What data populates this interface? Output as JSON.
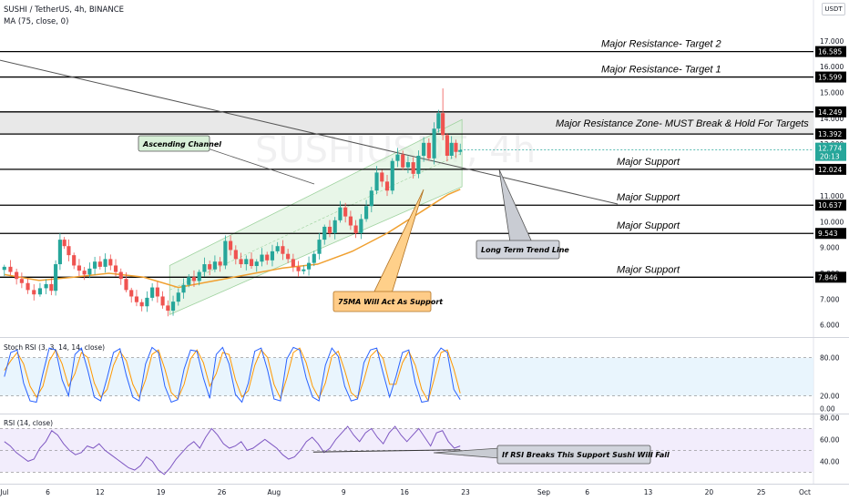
{
  "header": {
    "title": "SUSHI / TetherUS, 4h, BINANCE",
    "indicator": "MA (75, close, 0)",
    "currency": "USDT"
  },
  "chart_data": {
    "type": "candlestick",
    "title": "SUSHI / TetherUS, 4h, BINANCE",
    "price_ticks": [
      6.0,
      7.0,
      8.0,
      9.0,
      10.0,
      11.0,
      12.0,
      13.0,
      14.0,
      15.0,
      16.0,
      17.0
    ],
    "price_ylim": [
      5.6,
      18.3
    ],
    "date_axis": {
      "labels": [
        {
          "day": 0,
          "text": "Jul"
        },
        {
          "day": 5,
          "text": "6"
        },
        {
          "day": 11,
          "text": "12"
        },
        {
          "day": 18,
          "text": "19"
        },
        {
          "day": 25,
          "text": "26"
        },
        {
          "day": 31,
          "text": "Aug"
        },
        {
          "day": 39,
          "text": "9"
        },
        {
          "day": 46,
          "text": "16"
        },
        {
          "day": 53,
          "text": "23"
        },
        {
          "day": 62,
          "text": "Sep"
        },
        {
          "day": 67,
          "text": "6"
        },
        {
          "day": 74,
          "text": "13"
        },
        {
          "day": 81,
          "text": "20"
        },
        {
          "day": 87,
          "text": "25"
        },
        {
          "day": 92,
          "text": "Oct"
        }
      ],
      "xlim": [
        -0.5,
        93
      ]
    },
    "price_series": [
      {
        "day": 0.0,
        "close": 8.25
      },
      {
        "day": 0.7,
        "close": 8.05
      },
      {
        "day": 1.4,
        "close": 7.78
      },
      {
        "day": 2.0,
        "close": 7.62
      },
      {
        "day": 2.7,
        "close": 7.35
      },
      {
        "day": 3.4,
        "close": 7.18
      },
      {
        "day": 4.1,
        "close": 7.42
      },
      {
        "day": 4.8,
        "close": 7.58
      },
      {
        "day": 5.4,
        "close": 7.32
      },
      {
        "day": 5.9,
        "close": 8.35
      },
      {
        "day": 6.4,
        "close": 9.3
      },
      {
        "day": 6.9,
        "close": 9.05
      },
      {
        "day": 7.4,
        "close": 8.7
      },
      {
        "day": 8.0,
        "close": 8.3
      },
      {
        "day": 8.6,
        "close": 8.1
      },
      {
        "day": 9.2,
        "close": 7.95
      },
      {
        "day": 9.8,
        "close": 8.18
      },
      {
        "day": 10.4,
        "close": 8.45
      },
      {
        "day": 11.0,
        "close": 8.25
      },
      {
        "day": 11.6,
        "close": 8.55
      },
      {
        "day": 12.2,
        "close": 8.3
      },
      {
        "day": 12.8,
        "close": 8.05
      },
      {
        "day": 13.4,
        "close": 7.78
      },
      {
        "day": 14.0,
        "close": 7.35
      },
      {
        "day": 14.6,
        "close": 7.1
      },
      {
        "day": 15.2,
        "close": 6.88
      },
      {
        "day": 15.8,
        "close": 6.72
      },
      {
        "day": 16.4,
        "close": 7.05
      },
      {
        "day": 17.0,
        "close": 7.45
      },
      {
        "day": 17.6,
        "close": 7.1
      },
      {
        "day": 18.2,
        "close": 6.75
      },
      {
        "day": 18.8,
        "close": 6.55
      },
      {
        "day": 19.4,
        "close": 6.9
      },
      {
        "day": 20.0,
        "close": 7.25
      },
      {
        "day": 20.6,
        "close": 7.55
      },
      {
        "day": 21.2,
        "close": 7.85
      },
      {
        "day": 21.8,
        "close": 7.7
      },
      {
        "day": 22.4,
        "close": 8.05
      },
      {
        "day": 23.0,
        "close": 8.35
      },
      {
        "day": 23.6,
        "close": 8.15
      },
      {
        "day": 24.2,
        "close": 8.45
      },
      {
        "day": 24.8,
        "close": 8.3
      },
      {
        "day": 25.4,
        "close": 9.25
      },
      {
        "day": 26.0,
        "close": 8.9
      },
      {
        "day": 26.6,
        "close": 8.55
      },
      {
        "day": 27.2,
        "close": 8.35
      },
      {
        "day": 27.8,
        "close": 8.55
      },
      {
        "day": 28.4,
        "close": 8.28
      },
      {
        "day": 29.0,
        "close": 8.45
      },
      {
        "day": 29.6,
        "close": 8.72
      },
      {
        "day": 30.2,
        "close": 8.5
      },
      {
        "day": 30.8,
        "close": 8.85
      },
      {
        "day": 31.4,
        "close": 9.05
      },
      {
        "day": 32.0,
        "close": 8.75
      },
      {
        "day": 32.6,
        "close": 8.55
      },
      {
        "day": 33.2,
        "close": 8.25
      },
      {
        "day": 33.8,
        "close": 8.08
      },
      {
        "day": 34.4,
        "close": 8.15
      },
      {
        "day": 35.0,
        "close": 8.4
      },
      {
        "day": 35.6,
        "close": 8.75
      },
      {
        "day": 36.2,
        "close": 9.3
      },
      {
        "day": 36.8,
        "close": 9.8
      },
      {
        "day": 37.4,
        "close": 9.55
      },
      {
        "day": 38.0,
        "close": 10.05
      },
      {
        "day": 38.6,
        "close": 10.55
      },
      {
        "day": 39.2,
        "close": 10.2
      },
      {
        "day": 39.8,
        "close": 9.85
      },
      {
        "day": 40.4,
        "close": 9.55
      },
      {
        "day": 41.0,
        "close": 10.1
      },
      {
        "day": 41.6,
        "close": 10.6
      },
      {
        "day": 42.2,
        "close": 11.2
      },
      {
        "day": 42.8,
        "close": 11.9
      },
      {
        "day": 43.4,
        "close": 11.55
      },
      {
        "day": 44.0,
        "close": 11.2
      },
      {
        "day": 44.6,
        "close": 12.35
      },
      {
        "day": 45.2,
        "close": 12.6
      },
      {
        "day": 45.8,
        "close": 12.1
      },
      {
        "day": 46.4,
        "close": 12.3
      },
      {
        "day": 47.0,
        "close": 11.85
      },
      {
        "day": 47.6,
        "close": 12.55
      },
      {
        "day": 48.2,
        "close": 13.05
      },
      {
        "day": 48.8,
        "close": 12.45
      },
      {
        "day": 49.4,
        "close": 13.6
      },
      {
        "day": 49.9,
        "close": 14.2
      },
      {
        "day": 50.4,
        "close": 13.35
      },
      {
        "day": 50.9,
        "close": 12.55
      },
      {
        "day": 51.4,
        "close": 13.05
      },
      {
        "day": 51.9,
        "close": 12.7
      },
      {
        "day": 52.4,
        "close": 12.77
      }
    ],
    "ma_75": [
      {
        "day": 0,
        "value": 7.95
      },
      {
        "day": 4,
        "value": 7.72
      },
      {
        "day": 8,
        "value": 7.85
      },
      {
        "day": 12,
        "value": 8.0
      },
      {
        "day": 16,
        "value": 7.85
      },
      {
        "day": 20,
        "value": 7.45
      },
      {
        "day": 24,
        "value": 7.7
      },
      {
        "day": 28,
        "value": 7.95
      },
      {
        "day": 32,
        "value": 8.2
      },
      {
        "day": 36,
        "value": 8.35
      },
      {
        "day": 40,
        "value": 8.85
      },
      {
        "day": 44,
        "value": 9.55
      },
      {
        "day": 48,
        "value": 10.4
      },
      {
        "day": 51,
        "value": 11.05
      },
      {
        "day": 52.4,
        "value": 11.25
      }
    ],
    "horizontal_levels": [
      {
        "price": 16.585,
        "label": "Major Resistance- Target 2"
      },
      {
        "price": 15.599,
        "label": "Major Resistance- Target 1"
      },
      {
        "price": 14.249,
        "label": ""
      },
      {
        "price": 13.392,
        "label": ""
      },
      {
        "price": 12.024,
        "label": "Major Support"
      },
      {
        "price": 10.637,
        "label": "Major Support"
      },
      {
        "price": 9.543,
        "label": "Major Support"
      },
      {
        "price": 7.846,
        "label": "Major Support"
      }
    ],
    "resistance_zone": {
      "from": 13.392,
      "to": 14.249,
      "label": "Major Resistance Zone- MUST Break & Hold For Targets"
    },
    "current_price": {
      "price": 12.774,
      "countdown": "20:13"
    },
    "trend_line": {
      "start": {
        "day": -0.5,
        "price": 16.25
      },
      "end": {
        "day": 70.5,
        "price": 10.68
      }
    },
    "channel": {
      "lower_start": {
        "day": 19.0,
        "price": 6.4
      },
      "lower_end": {
        "day": 52.6,
        "price": 11.35
      },
      "upper_start": {
        "day": 19.0,
        "price": 8.3
      },
      "upper_end": {
        "day": 52.6,
        "price": 13.95
      }
    },
    "annotations": [
      {
        "text": "Ascending Channel"
      },
      {
        "text": "Long Term Trend Line"
      },
      {
        "text": "75MA Will Act As Support"
      },
      {
        "text": "If RSI Breaks This Support Sushi Will Fall"
      }
    ],
    "stoch_rsi": {
      "label": "Stoch RSI (3, 3, 14, 14, close)",
      "ticks": [
        0.0,
        20.0,
        80.0
      ],
      "bands": [
        20,
        80
      ],
      "ylim": [
        -5,
        108
      ],
      "k": [
        50,
        88,
        92,
        40,
        12,
        10,
        55,
        95,
        92,
        45,
        20,
        85,
        95,
        60,
        18,
        12,
        48,
        88,
        94,
        52,
        18,
        12,
        70,
        96,
        88,
        35,
        10,
        14,
        62,
        92,
        90,
        48,
        16,
        85,
        96,
        70,
        22,
        10,
        40,
        90,
        95,
        60,
        15,
        12,
        78,
        96,
        92,
        48,
        18,
        12,
        68,
        95,
        82,
        35,
        12,
        15,
        72,
        92,
        95,
        55,
        18,
        50,
        88,
        92,
        40,
        10,
        12,
        80,
        95,
        88,
        30,
        14
      ],
      "d": [
        60,
        75,
        88,
        70,
        35,
        18,
        35,
        75,
        92,
        70,
        35,
        55,
        88,
        80,
        40,
        18,
        30,
        68,
        90,
        75,
        38,
        18,
        45,
        85,
        92,
        62,
        25,
        15,
        38,
        78,
        92,
        72,
        35,
        55,
        88,
        85,
        45,
        18,
        28,
        68,
        92,
        80,
        38,
        16,
        48,
        88,
        95,
        72,
        35,
        16,
        40,
        82,
        90,
        60,
        25,
        16,
        45,
        82,
        92,
        78,
        38,
        38,
        72,
        90,
        68,
        30,
        12,
        48,
        88,
        92,
        62,
        24
      ]
    },
    "rsi": {
      "label": "RSI (14, close)",
      "ticks": [
        40.0,
        60.0,
        80.0
      ],
      "bands": [
        30,
        50,
        70
      ],
      "ylim": [
        22,
        82
      ],
      "values": [
        58,
        54,
        48,
        44,
        40,
        42,
        52,
        58,
        68,
        64,
        56,
        50,
        46,
        48,
        54,
        52,
        56,
        50,
        46,
        42,
        38,
        34,
        32,
        36,
        44,
        40,
        32,
        28,
        34,
        42,
        48,
        54,
        58,
        52,
        62,
        70,
        64,
        56,
        52,
        54,
        58,
        50,
        52,
        56,
        60,
        56,
        52,
        46,
        42,
        44,
        50,
        58,
        62,
        56,
        48,
        52,
        60,
        66,
        72,
        64,
        58,
        66,
        70,
        62,
        56,
        66,
        72,
        64,
        58,
        64,
        70,
        62,
        54,
        66,
        68,
        58,
        52,
        54
      ]
    },
    "rsi_support_line": {
      "start": {
        "day": 35.5,
        "value": 48.5
      },
      "end": {
        "day": 52.4,
        "value": 50.5
      }
    }
  }
}
